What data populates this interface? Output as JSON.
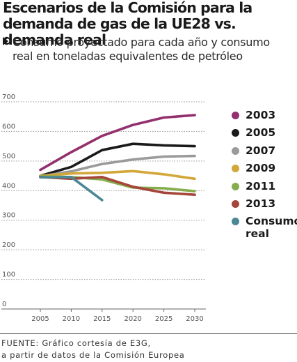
{
  "header": {
    "title": "Escenarios de la Comisión para la demanda de gas de la UE28 vs. demanda real",
    "subtitle_line1": "Consumo proyectado para cada año y consumo",
    "subtitle_line2": "real en toneladas equivalentes de petróleo"
  },
  "source": {
    "line1": "FUENTE: Gráfico cortesía de E3G,",
    "line2": "a partir de datos de la Comisión Europea"
  },
  "chart_data": {
    "type": "line",
    "title": "Escenarios de la Comisión para la demanda de gas de la UE28 vs. demanda real",
    "subtitle": "Consumo proyectado para cada año y consumo real en toneladas equivalentes de petróleo",
    "xlabel": "",
    "ylabel": "",
    "x": [
      2005,
      2010,
      2015,
      2020,
      2025,
      2030
    ],
    "x_ticks": [
      "2005",
      "2010",
      "2015",
      "2020",
      "2025",
      "2030"
    ],
    "y_ticks": [
      "0",
      "100",
      "200",
      "300",
      "400",
      "500",
      "600",
      "700"
    ],
    "ylim": [
      0,
      700
    ],
    "xlim": [
      2005,
      2030
    ],
    "grid": true,
    "legend": "right",
    "series": [
      {
        "name": "2003",
        "color": "#93306e",
        "x": [
          2005,
          2010,
          2015,
          2020,
          2025,
          2030
        ],
        "values": [
          470,
          530,
          585,
          622,
          647,
          655
        ]
      },
      {
        "name": "2005",
        "color": "#1a1a1a",
        "x": [
          2005,
          2010,
          2015,
          2020,
          2025,
          2030
        ],
        "values": [
          450,
          480,
          537,
          558,
          553,
          550
        ]
      },
      {
        "name": "2007",
        "color": "#9a9a9a",
        "x": [
          2005,
          2010,
          2015,
          2020,
          2025,
          2030
        ],
        "values": [
          448,
          465,
          490,
          505,
          515,
          517
        ]
      },
      {
        "name": "2009",
        "color": "#d3a73a",
        "x": [
          2005,
          2010,
          2015,
          2020,
          2025,
          2030
        ],
        "values": [
          450,
          458,
          460,
          466,
          455,
          440
        ]
      },
      {
        "name": "2011",
        "color": "#85ad4e",
        "x": [
          2005,
          2010,
          2015,
          2020,
          2025,
          2030
        ],
        "values": [
          448,
          446,
          438,
          410,
          408,
          398
        ]
      },
      {
        "name": "2013",
        "color": "#a5463a",
        "x": [
          2005,
          2010,
          2015,
          2020,
          2025,
          2030
        ],
        "values": [
          446,
          440,
          446,
          413,
          393,
          386
        ]
      },
      {
        "name": "Consumo real",
        "color": "#4b8895",
        "x": [
          2005,
          2010,
          2015
        ],
        "values": [
          445,
          446,
          368
        ]
      }
    ]
  }
}
